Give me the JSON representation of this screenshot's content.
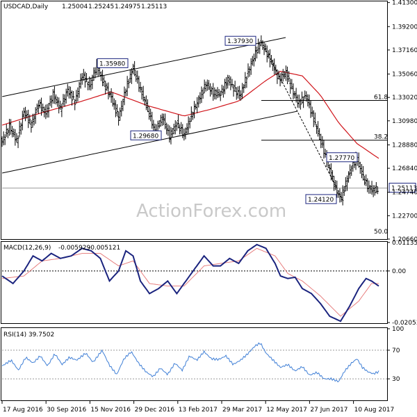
{
  "chart_data": [
    {
      "type": "candlestick",
      "symbol_label": "USDCAD,Daily",
      "ohlc_readout": [
        "1.25004",
        "1.25245",
        "1.24975",
        "1.25113"
      ],
      "current_price": "1.25113",
      "ylim": [
        1.2066,
        1.414
      ],
      "y_ticks": [
        "1.41300",
        "1.39200",
        "1.37160",
        "1.35060",
        "1.33020",
        "1.30980",
        "1.28880",
        "1.26840",
        "1.24740",
        "1.22700",
        "1.20660"
      ],
      "x_ticks": [
        "17 Aug 2016",
        "30 Sep 2016",
        "15 Nov 2016",
        "29 Dec 2016",
        "13 Feb 2017",
        "29 Mar 2017",
        "12 May 2017",
        "27 Jun 2017",
        "10 Aug 2017"
      ],
      "annotations": [
        {
          "label": "1.35980",
          "price": 1.3598
        },
        {
          "label": "1.29680",
          "price": 1.2968
        },
        {
          "label": "1.37930",
          "price": 1.3793
        },
        {
          "label": "1.27770",
          "price": 1.2777
        },
        {
          "label": "1.24120",
          "price": 1.2412
        }
      ],
      "fib_levels": [
        {
          "label": "61.8",
          "price": 1.3276
        },
        {
          "label": "38.2",
          "price": 1.2929
        },
        {
          "label": "50.0",
          "price": 1.2103
        }
      ],
      "price_path": [
        [
          0,
          1.292
        ],
        [
          8,
          1.305
        ],
        [
          16,
          1.292
        ],
        [
          24,
          1.318
        ],
        [
          32,
          1.306
        ],
        [
          40,
          1.325
        ],
        [
          48,
          1.316
        ],
        [
          56,
          1.333
        ],
        [
          64,
          1.32
        ],
        [
          72,
          1.337
        ],
        [
          80,
          1.326
        ],
        [
          88,
          1.35
        ],
        [
          96,
          1.34
        ],
        [
          104,
          1.358
        ],
        [
          112,
          1.342
        ],
        [
          120,
          1.33
        ],
        [
          128,
          1.312
        ],
        [
          136,
          1.338
        ],
        [
          144,
          1.356
        ],
        [
          152,
          1.337
        ],
        [
          160,
          1.32
        ],
        [
          168,
          1.3
        ],
        [
          176,
          1.313
        ],
        [
          184,
          1.296
        ],
        [
          192,
          1.308
        ],
        [
          200,
          1.297
        ],
        [
          208,
          1.315
        ],
        [
          216,
          1.328
        ],
        [
          224,
          1.342
        ],
        [
          232,
          1.334
        ],
        [
          240,
          1.333
        ],
        [
          248,
          1.346
        ],
        [
          256,
          1.336
        ],
        [
          262,
          1.332
        ],
        [
          270,
          1.352
        ],
        [
          278,
          1.368
        ],
        [
          284,
          1.379
        ],
        [
          290,
          1.37
        ],
        [
          296,
          1.361
        ],
        [
          304,
          1.346
        ],
        [
          312,
          1.352
        ],
        [
          318,
          1.338
        ],
        [
          326,
          1.325
        ],
        [
          334,
          1.332
        ],
        [
          342,
          1.312
        ],
        [
          350,
          1.293
        ],
        [
          358,
          1.272
        ],
        [
          366,
          1.252
        ],
        [
          372,
          1.241
        ],
        [
          378,
          1.256
        ],
        [
          384,
          1.27
        ],
        [
          390,
          1.277
        ],
        [
          396,
          1.262
        ],
        [
          402,
          1.252
        ],
        [
          408,
          1.249
        ],
        [
          414,
          1.251
        ]
      ],
      "moving_average": [
        [
          0,
          1.306
        ],
        [
          40,
          1.316
        ],
        [
          80,
          1.325
        ],
        [
          120,
          1.335
        ],
        [
          160,
          1.323
        ],
        [
          200,
          1.314
        ],
        [
          230,
          1.32
        ],
        [
          260,
          1.327
        ],
        [
          290,
          1.345
        ],
        [
          306,
          1.353
        ],
        [
          330,
          1.349
        ],
        [
          350,
          1.332
        ],
        [
          370,
          1.308
        ],
        [
          390,
          1.29
        ],
        [
          414,
          1.277
        ]
      ]
    },
    {
      "type": "line",
      "label": "MACD(12,26,9)",
      "readout": [
        "-0.005929",
        "-0.005121"
      ],
      "ylim": [
        -0.0205,
        0.0113
      ],
      "y_ticks": [
        "0.011355",
        "0.00",
        "-0.020531"
      ],
      "zero_level": 0.0,
      "macd": [
        [
          0,
          -0.002
        ],
        [
          12,
          -0.005
        ],
        [
          24,
          0.0
        ],
        [
          34,
          0.006
        ],
        [
          44,
          0.004
        ],
        [
          54,
          0.007
        ],
        [
          64,
          0.005
        ],
        [
          76,
          0.006
        ],
        [
          88,
          0.009
        ],
        [
          98,
          0.008
        ],
        [
          108,
          0.005
        ],
        [
          118,
          -0.004
        ],
        [
          128,
          0.0
        ],
        [
          136,
          0.008
        ],
        [
          144,
          0.006
        ],
        [
          152,
          -0.004
        ],
        [
          162,
          -0.009
        ],
        [
          172,
          -0.007
        ],
        [
          182,
          -0.004
        ],
        [
          192,
          -0.009
        ],
        [
          200,
          -0.005
        ],
        [
          212,
          0.001
        ],
        [
          222,
          0.006
        ],
        [
          232,
          0.002
        ],
        [
          240,
          0.002
        ],
        [
          250,
          0.005
        ],
        [
          260,
          0.003
        ],
        [
          270,
          0.008
        ],
        [
          280,
          0.0105
        ],
        [
          290,
          0.009
        ],
        [
          300,
          0.003
        ],
        [
          306,
          -0.002
        ],
        [
          314,
          -0.003
        ],
        [
          322,
          -0.0025
        ],
        [
          330,
          -0.007
        ],
        [
          340,
          -0.009
        ],
        [
          350,
          -0.013
        ],
        [
          360,
          -0.018
        ],
        [
          372,
          -0.02
        ],
        [
          382,
          -0.014
        ],
        [
          392,
          -0.007
        ],
        [
          400,
          -0.003
        ],
        [
          406,
          -0.004
        ],
        [
          414,
          -0.006
        ]
      ],
      "signal": [
        [
          0,
          -0.003
        ],
        [
          24,
          -0.002
        ],
        [
          44,
          0.004
        ],
        [
          64,
          0.005
        ],
        [
          88,
          0.007
        ],
        [
          108,
          0.007
        ],
        [
          128,
          0.002
        ],
        [
          144,
          0.004
        ],
        [
          162,
          -0.005
        ],
        [
          182,
          -0.006
        ],
        [
          200,
          -0.006
        ],
        [
          222,
          0.002
        ],
        [
          240,
          0.003
        ],
        [
          260,
          0.004
        ],
        [
          280,
          0.009
        ],
        [
          300,
          0.006
        ],
        [
          314,
          -0.001
        ],
        [
          330,
          -0.004
        ],
        [
          350,
          -0.01
        ],
        [
          372,
          -0.018
        ],
        [
          392,
          -0.012
        ],
        [
          406,
          -0.005
        ],
        [
          414,
          -0.005
        ]
      ]
    },
    {
      "type": "line",
      "label": "RSI(14) 39.7502",
      "ylim": [
        0,
        100
      ],
      "y_ticks": [
        "100",
        "70",
        "30",
        "0"
      ],
      "levels": [
        70,
        30
      ],
      "rsi": [
        [
          0,
          48
        ],
        [
          10,
          56
        ],
        [
          18,
          42
        ],
        [
          26,
          60
        ],
        [
          34,
          52
        ],
        [
          42,
          62
        ],
        [
          50,
          48
        ],
        [
          58,
          65
        ],
        [
          66,
          50
        ],
        [
          74,
          60
        ],
        [
          82,
          56
        ],
        [
          92,
          66
        ],
        [
          100,
          53
        ],
        [
          110,
          70
        ],
        [
          118,
          49
        ],
        [
          126,
          36
        ],
        [
          134,
          58
        ],
        [
          142,
          68
        ],
        [
          150,
          52
        ],
        [
          158,
          40
        ],
        [
          166,
          33
        ],
        [
          174,
          45
        ],
        [
          182,
          36
        ],
        [
          190,
          52
        ],
        [
          198,
          42
        ],
        [
          206,
          62
        ],
        [
          214,
          56
        ],
        [
          222,
          68
        ],
        [
          230,
          58
        ],
        [
          238,
          57
        ],
        [
          246,
          62
        ],
        [
          254,
          50
        ],
        [
          262,
          56
        ],
        [
          270,
          65
        ],
        [
          278,
          76
        ],
        [
          284,
          80
        ],
        [
          290,
          66
        ],
        [
          298,
          56
        ],
        [
          306,
          46
        ],
        [
          314,
          50
        ],
        [
          322,
          41
        ],
        [
          330,
          47
        ],
        [
          338,
          35
        ],
        [
          346,
          39
        ],
        [
          354,
          30
        ],
        [
          362,
          30
        ],
        [
          370,
          26
        ],
        [
          376,
          40
        ],
        [
          384,
          52
        ],
        [
          390,
          58
        ],
        [
          396,
          46
        ],
        [
          402,
          40
        ],
        [
          408,
          37
        ],
        [
          414,
          40
        ]
      ]
    }
  ],
  "watermark": "ActionForex.com"
}
